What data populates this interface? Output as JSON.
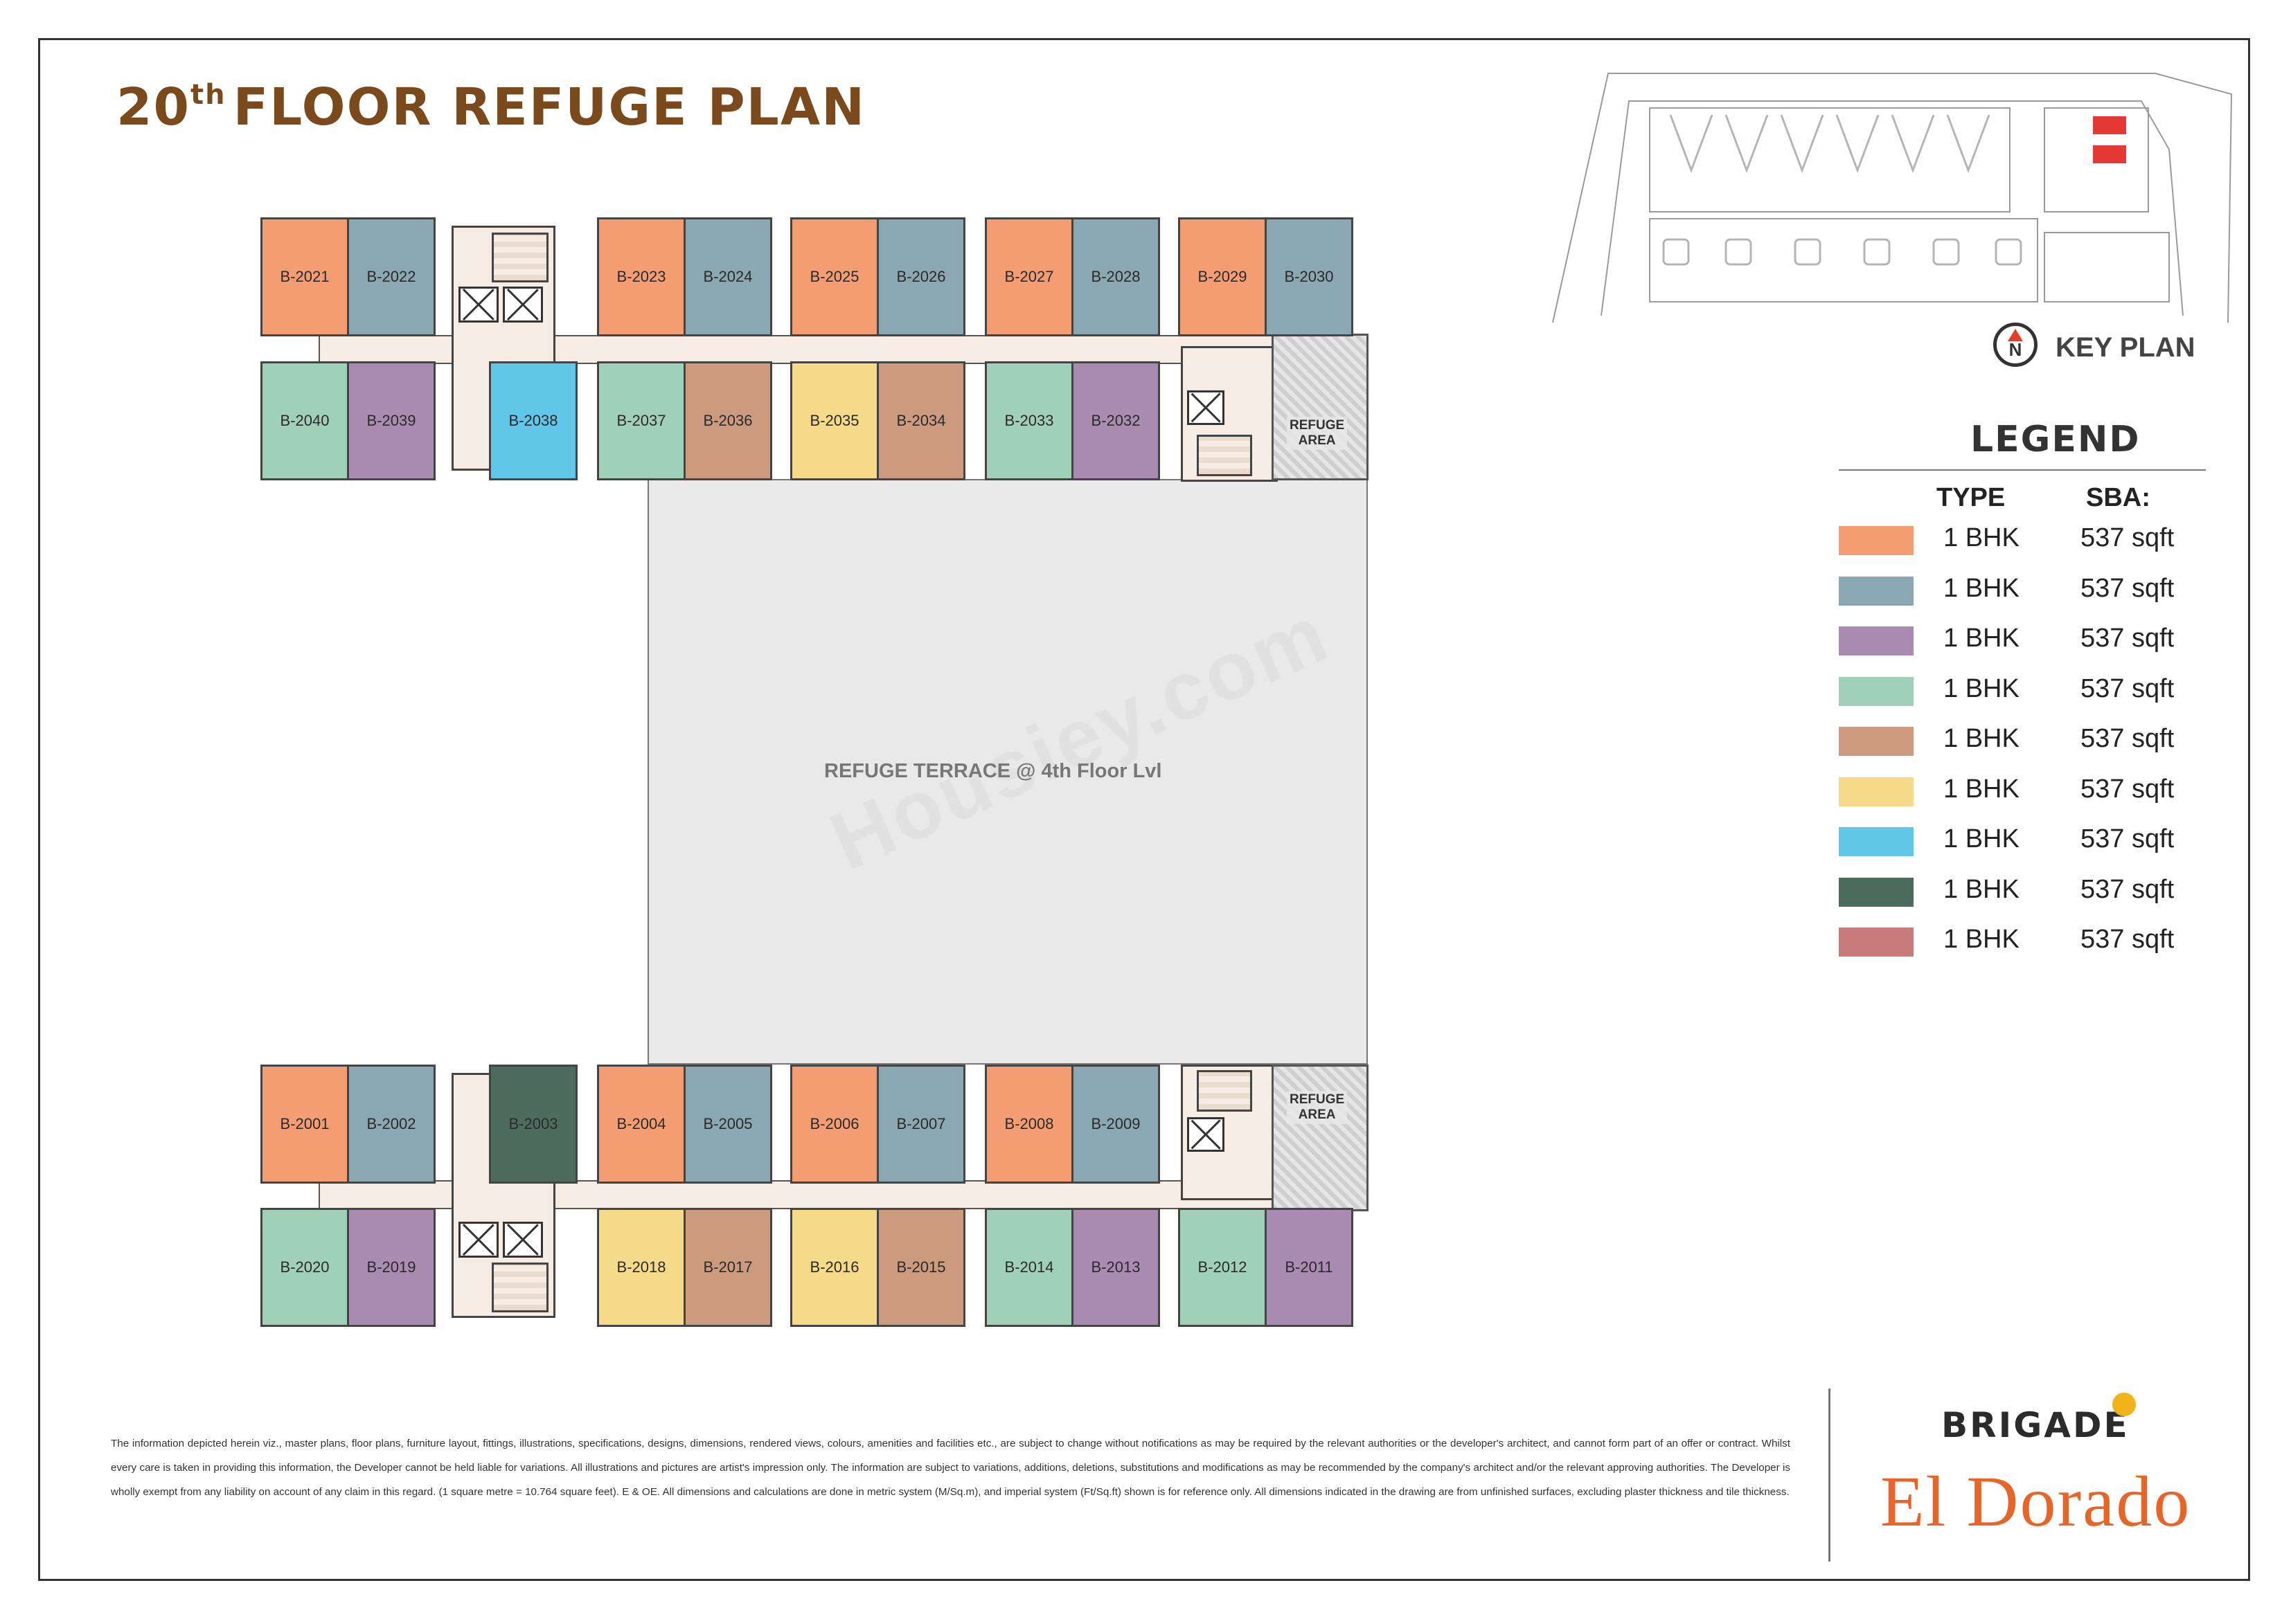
{
  "title": {
    "ordinal_num": "20",
    "ordinal_suffix": "th",
    "rest": "FLOOR REFUGE PLAN"
  },
  "colors": {
    "orange": "#f59d72",
    "slate": "#8aa7b2",
    "purple": "#aa8bb2",
    "green": "#a1d0b8",
    "brown": "#cc9a7f",
    "yellow": "#f5da8a",
    "sky": "#62c5ea",
    "dark_green": "#4d6b5e",
    "rose": "#c97b7b",
    "title": "#7a4a1c",
    "project": "#e8652a"
  },
  "units": [
    {
      "id": "B-2021",
      "color": "orange"
    },
    {
      "id": "B-2022",
      "color": "slate"
    },
    {
      "id": "B-2023",
      "color": "orange"
    },
    {
      "id": "B-2024",
      "color": "slate"
    },
    {
      "id": "B-2025",
      "color": "orange"
    },
    {
      "id": "B-2026",
      "color": "slate"
    },
    {
      "id": "B-2027",
      "color": "orange"
    },
    {
      "id": "B-2028",
      "color": "slate"
    },
    {
      "id": "B-2029",
      "color": "orange"
    },
    {
      "id": "B-2030",
      "color": "slate"
    },
    {
      "id": "B-2040",
      "color": "green"
    },
    {
      "id": "B-2039",
      "color": "purple"
    },
    {
      "id": "B-2038",
      "color": "sky"
    },
    {
      "id": "B-2037",
      "color": "green"
    },
    {
      "id": "B-2036",
      "color": "brown"
    },
    {
      "id": "B-2035",
      "color": "yellow"
    },
    {
      "id": "B-2034",
      "color": "brown"
    },
    {
      "id": "B-2033",
      "color": "green"
    },
    {
      "id": "B-2032",
      "color": "purple"
    },
    {
      "id": "B-2001",
      "color": "orange"
    },
    {
      "id": "B-2002",
      "color": "slate"
    },
    {
      "id": "B-2003",
      "color": "dark_green"
    },
    {
      "id": "B-2004",
      "color": "orange"
    },
    {
      "id": "B-2005",
      "color": "slate"
    },
    {
      "id": "B-2006",
      "color": "orange"
    },
    {
      "id": "B-2007",
      "color": "slate"
    },
    {
      "id": "B-2008",
      "color": "orange"
    },
    {
      "id": "B-2009",
      "color": "slate"
    },
    {
      "id": "B-2020",
      "color": "green"
    },
    {
      "id": "B-2019",
      "color": "purple"
    },
    {
      "id": "B-2018",
      "color": "yellow"
    },
    {
      "id": "B-2017",
      "color": "brown"
    },
    {
      "id": "B-2016",
      "color": "yellow"
    },
    {
      "id": "B-2015",
      "color": "brown"
    },
    {
      "id": "B-2014",
      "color": "green"
    },
    {
      "id": "B-2013",
      "color": "purple"
    },
    {
      "id": "B-2012",
      "color": "green"
    },
    {
      "id": "B-2011",
      "color": "purple"
    }
  ],
  "refuge_area_label": [
    "REFUGE",
    "AREA"
  ],
  "terrace_label": "REFUGE TERRACE @ 4th Floor Lvl",
  "watermark": "Housiey.com",
  "key_plan_label": "KEY PLAN",
  "north_letter": "N",
  "legend": {
    "title": "LEGEND",
    "type_header": "TYPE",
    "sba_header": "SBA:",
    "rows": [
      {
        "color": "orange",
        "type": "1 BHK",
        "sba": "537 sqft"
      },
      {
        "color": "slate",
        "type": "1 BHK",
        "sba": "537 sqft"
      },
      {
        "color": "purple",
        "type": "1 BHK",
        "sba": "537 sqft"
      },
      {
        "color": "green",
        "type": "1 BHK",
        "sba": "537 sqft"
      },
      {
        "color": "brown",
        "type": "1 BHK",
        "sba": "537 sqft"
      },
      {
        "color": "yellow",
        "type": "1 BHK",
        "sba": "537 sqft"
      },
      {
        "color": "sky",
        "type": "1 BHK",
        "sba": "537 sqft"
      },
      {
        "color": "dark_green",
        "type": "1 BHK",
        "sba": "537 sqft"
      },
      {
        "color": "rose",
        "type": "1 BHK",
        "sba": "537 sqft"
      }
    ]
  },
  "disclaimer": "The information depicted herein viz., master plans, floor plans, furniture layout, fittings, illustrations, specifications, designs, dimensions, rendered views, colours, amenities and facilities etc., are subject to change without notifications as may be required by the relevant authorities or the developer's architect, and cannot form part of an offer or contract. Whilst every care is taken in providing this information, the Developer cannot be held liable for variations. All illustrations and pictures are artist's impression only. The information are subject to variations, additions, deletions, substitutions and modifications as may be recommended by the company's architect and/or the relevant approving authorities. The Developer is wholly exempt from any liability on account of any claim in this regard. (1 square metre = 10.764 square feet). E & OE.  All dimensions and calculations are done in metric system (M/Sq.m), and imperial system (Ft/Sq.ft) shown is for reference only. All dimensions indicated in the drawing are from unfinished surfaces, excluding plaster thickness and tile thickness.",
  "brand": "BRIGADE",
  "project": "El Dorado"
}
